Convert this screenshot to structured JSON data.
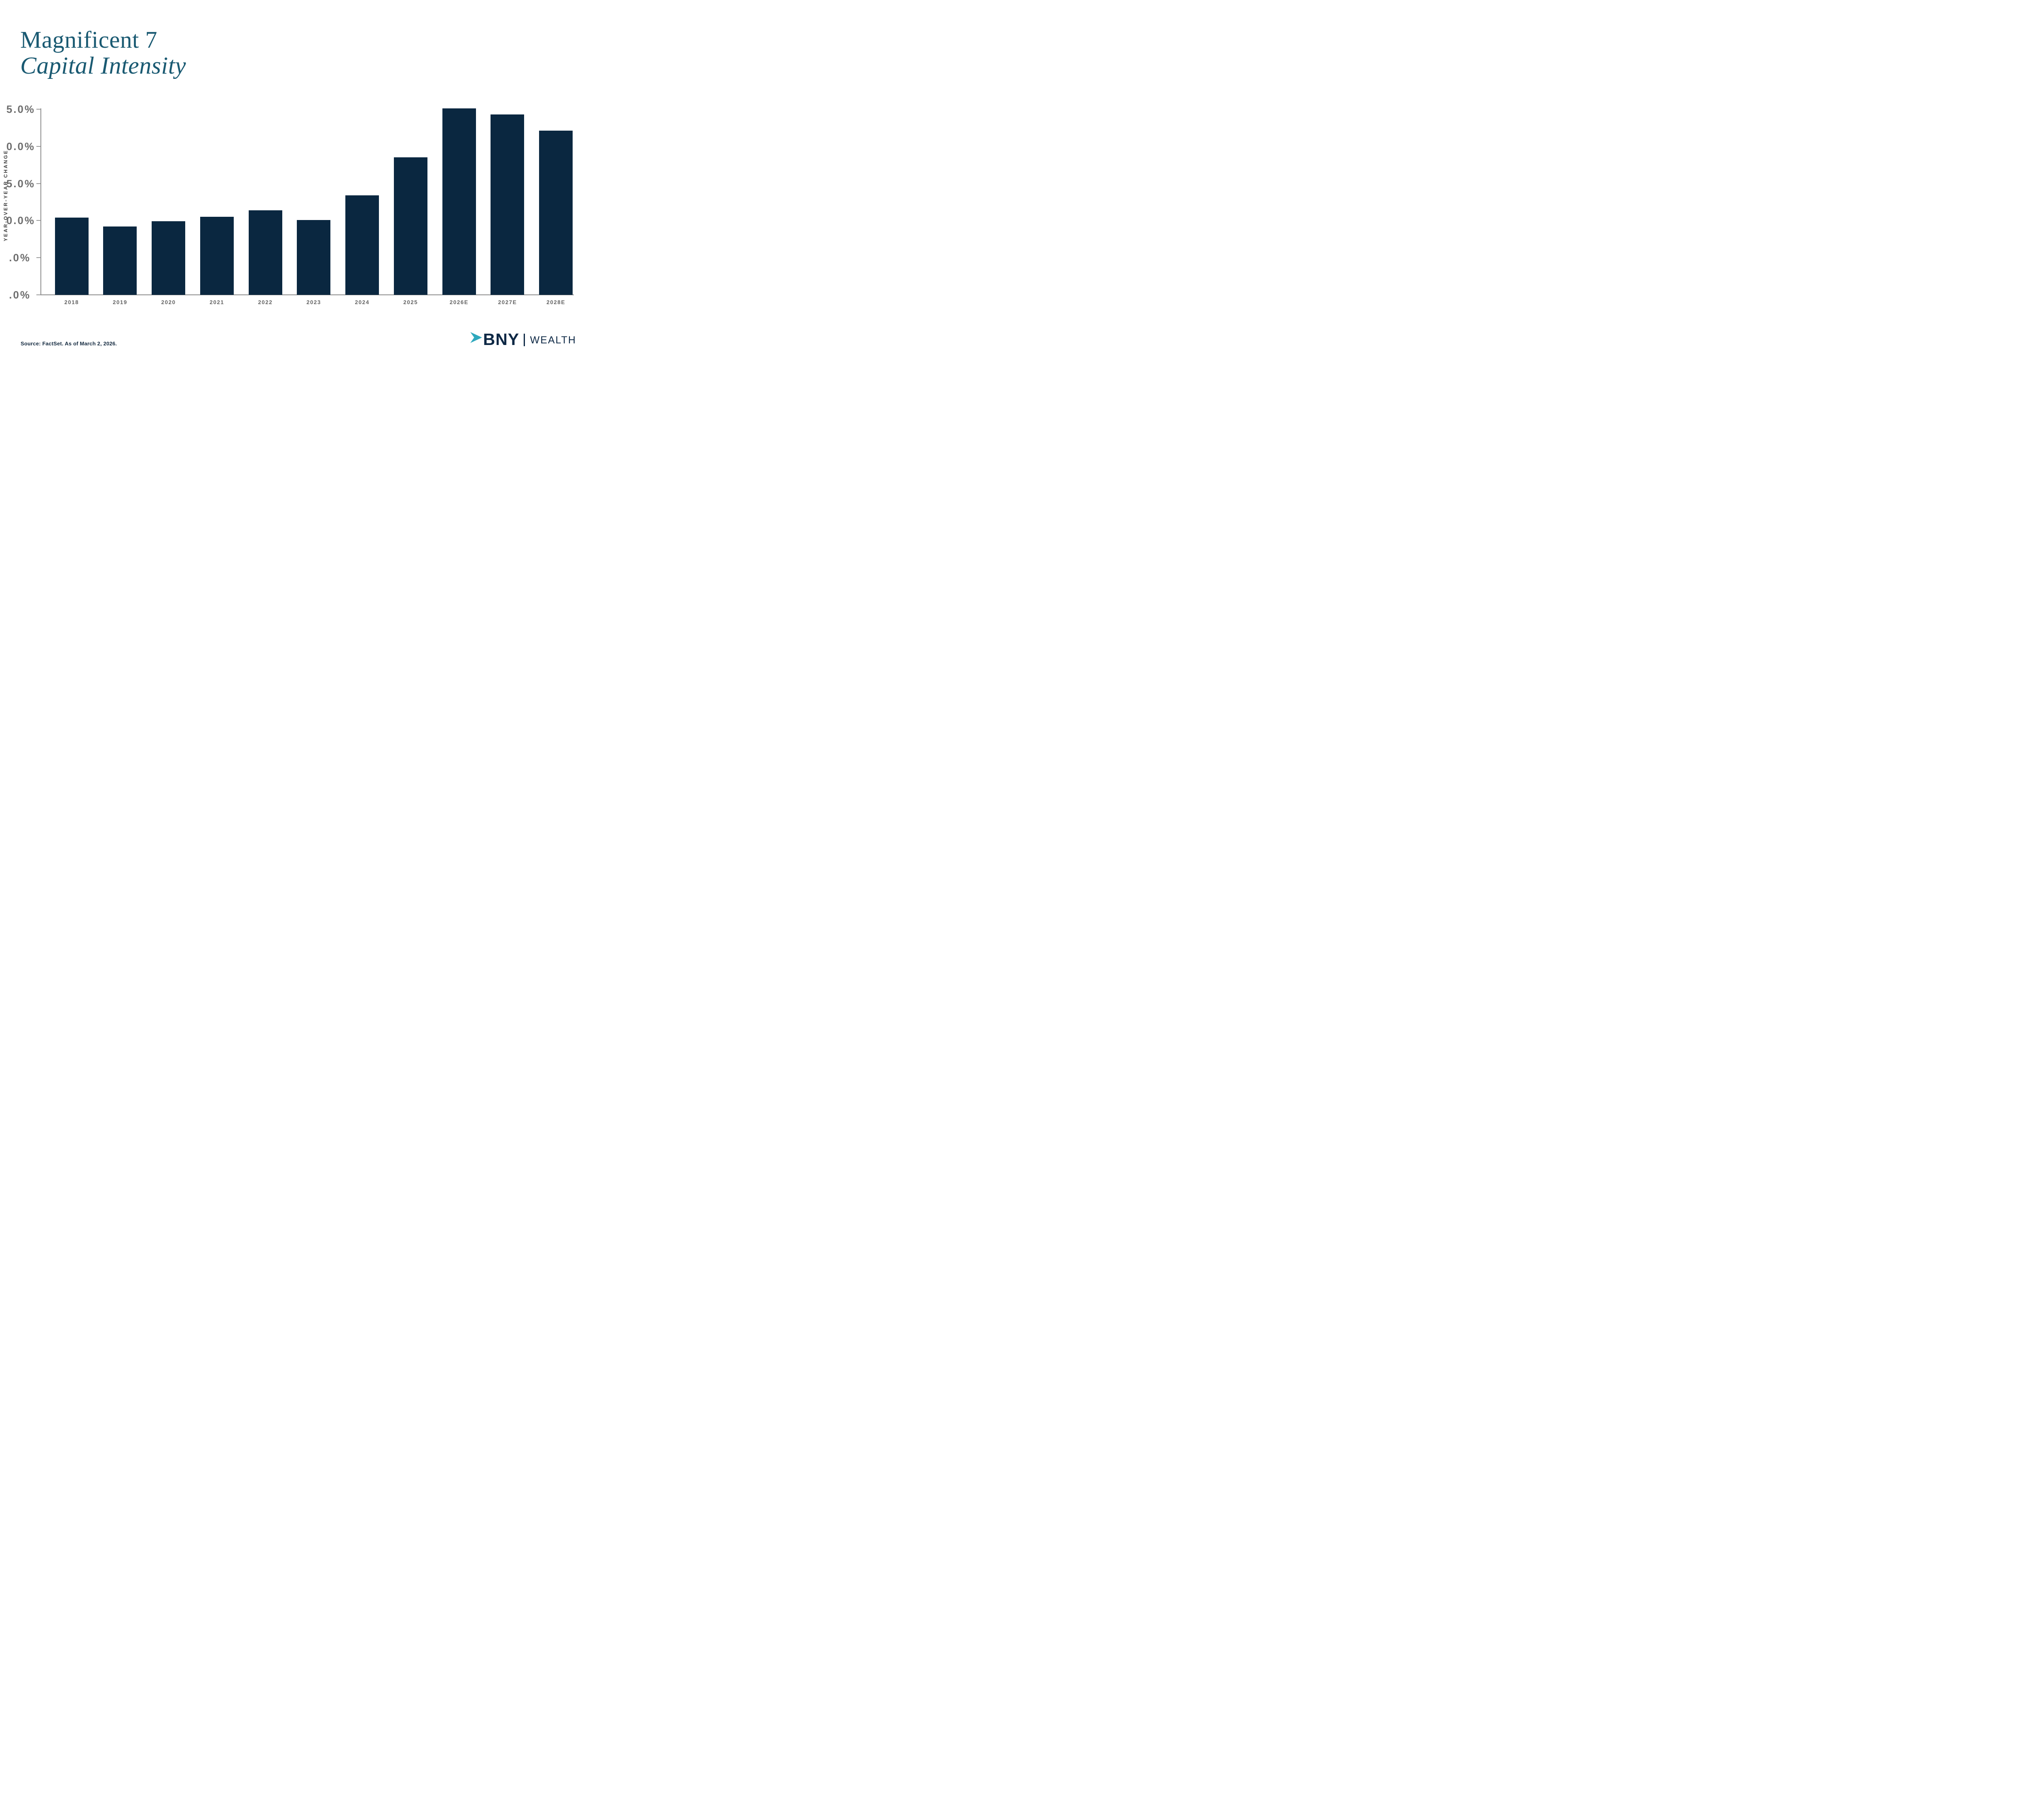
{
  "title": {
    "line1": "Magnificent 7",
    "line2": "Capital Intensity"
  },
  "y_axis": {
    "title": "YEAR-OVER-YEAR CHANGE",
    "tick_labels_visible": [
      "5.0%",
      "0.0%",
      "5.0%",
      "0.0%",
      ".0%",
      ".0%"
    ]
  },
  "source_note": "Source: FactSet. As of March 2, 2026.",
  "logo": {
    "brand": "BNY",
    "division": "WEALTH",
    "arrow_icon": "bny-arrow-icon"
  },
  "colors": {
    "title_teal": "#1A5A72",
    "bar_navy": "#0A2740",
    "axis_gray": "#8B8B8B",
    "tick_gray": "#9B9B9B",
    "y_label_gray": "#6E6E6E",
    "x_label_gray": "#646464",
    "y_title_gray": "#3B3B3B",
    "source_navy": "#13293F",
    "logo_navy": "#0D2845",
    "logo_teal": "#2EA8BD"
  },
  "chart_data": {
    "type": "bar",
    "title": "Magnificent 7 Capital Intensity",
    "categories": [
      "2018",
      "2019",
      "2020",
      "2021",
      "2022",
      "2023",
      "2024",
      "2025",
      "2026E",
      "2027E",
      "2028E"
    ],
    "values": [
      10.4,
      9.2,
      9.9,
      10.5,
      11.4,
      10.1,
      13.4,
      18.5,
      25.1,
      24.3,
      22.1
    ],
    "xlabel": "",
    "ylabel": "YEAR-OVER-YEAR CHANGE",
    "ylim": [
      0,
      25
    ],
    "ytick_values": [
      25,
      20,
      15,
      10,
      5,
      0
    ],
    "ytick_labels_visible": [
      "5.0%",
      "0.0%",
      "5.0%",
      "0.0%",
      ".0%",
      ".0%"
    ],
    "grid": false,
    "legend": "none",
    "bar_color": "#0A2740"
  }
}
